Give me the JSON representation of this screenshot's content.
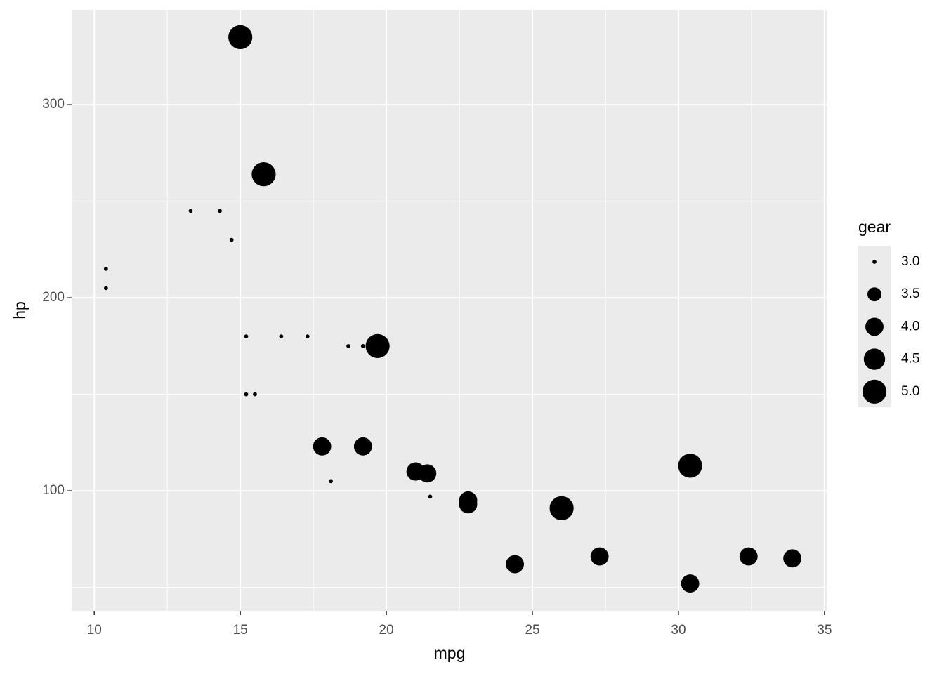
{
  "chart_data": {
    "type": "scatter",
    "xlabel": "mpg",
    "ylabel": "hp",
    "x": [
      21.0,
      21.0,
      22.8,
      21.4,
      18.7,
      18.1,
      14.3,
      24.4,
      22.8,
      19.2,
      17.8,
      16.4,
      17.3,
      15.2,
      10.4,
      10.4,
      14.7,
      32.4,
      30.4,
      33.9,
      21.5,
      15.5,
      15.2,
      13.3,
      19.2,
      27.3,
      26.0,
      30.4,
      15.8,
      19.7,
      15.0,
      21.4
    ],
    "y": [
      110,
      110,
      93,
      110,
      175,
      105,
      245,
      62,
      95,
      123,
      123,
      180,
      180,
      180,
      205,
      215,
      230,
      66,
      52,
      65,
      97,
      150,
      150,
      245,
      175,
      66,
      91,
      113,
      264,
      175,
      335,
      109
    ],
    "size": [
      4,
      4,
      4,
      3,
      3,
      3,
      3,
      4,
      4,
      4,
      4,
      3,
      3,
      3,
      3,
      3,
      3,
      4,
      4,
      4,
      3,
      3,
      3,
      3,
      3,
      4,
      5,
      5,
      5,
      5,
      5,
      4
    ],
    "color": "#000000",
    "size_legend_title": "gear",
    "size_breaks": [
      {
        "value": 3,
        "label": "3.0"
      },
      {
        "value": 3.5,
        "label": "3.5"
      },
      {
        "value": 4,
        "label": "4.0"
      },
      {
        "value": 4.5,
        "label": "4.5"
      },
      {
        "value": 5,
        "label": "5.0"
      }
    ],
    "sizelim": [
      3,
      5
    ],
    "xlim": [
      9.225,
      35.075
    ],
    "ylim": [
      37.85,
      349.15
    ],
    "xticks": [
      10,
      15,
      20,
      25,
      30,
      35
    ],
    "yticks": [
      100,
      200,
      300
    ],
    "grid": true
  }
}
